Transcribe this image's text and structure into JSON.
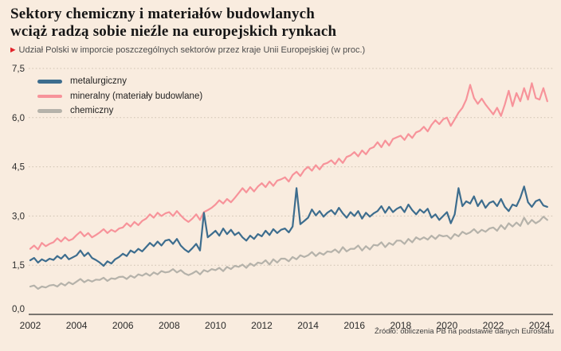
{
  "page": {
    "background_color": "#f9ecdf",
    "accent_red": "#e2232a"
  },
  "header": {
    "title_line1": "Sektory chemiczny i materiałów budowlanych",
    "title_line2": "wciąż radzą sobie nieźle na europejskich rynkach",
    "subtitle_marker": "▶",
    "subtitle": "Udział Polski w imporcie poszczególnych sektorów przez kraje Unii Europejskiej (w proc.)"
  },
  "footer": {
    "source": "Źródło: obliczenia PB na podstawie danych Eurostatu"
  },
  "chart_data": {
    "type": "line",
    "title": "Sektory chemiczny i materiałów budowlanych wciąż radzą sobie nieźle na europejskich rynkach",
    "subtitle": "Udział Polski w imporcie poszczególnych sektorów przez kraje Unii Europejskiej (w proc.)",
    "grid": "horizontal-dotted",
    "legend_position": "top-left-inside",
    "xlim": [
      2002,
      2024.6
    ],
    "ylim": [
      0,
      7.5
    ],
    "x_start": 2002.0,
    "x_step_years": 0.1666667,
    "x_tick_labels": [
      "2002",
      "2004",
      "2006",
      "2008",
      "2010",
      "2012",
      "2014",
      "2016",
      "2018",
      "2020",
      "2022",
      "2024"
    ],
    "y_ticks": [
      0,
      1.5,
      3.0,
      4.5,
      6.0,
      7.5
    ],
    "y_tick_labels": [
      "0,0",
      "1,5",
      "3,0",
      "4,5",
      "6,0",
      "7,5"
    ],
    "series": [
      {
        "name": "metalurgiczny",
        "color": "#3d6d8e",
        "values": [
          1.65,
          1.72,
          1.58,
          1.68,
          1.62,
          1.7,
          1.66,
          1.78,
          1.7,
          1.82,
          1.68,
          1.74,
          1.8,
          1.95,
          1.78,
          1.88,
          1.72,
          1.66,
          1.58,
          1.48,
          1.62,
          1.55,
          1.68,
          1.75,
          1.85,
          1.78,
          1.95,
          1.88,
          2.0,
          1.92,
          2.05,
          2.18,
          2.08,
          2.22,
          2.1,
          2.25,
          2.28,
          2.15,
          2.3,
          2.1,
          1.98,
          1.9,
          2.02,
          2.15,
          1.95,
          3.1,
          2.35,
          2.45,
          2.55,
          2.4,
          2.62,
          2.45,
          2.58,
          2.42,
          2.5,
          2.35,
          2.25,
          2.4,
          2.3,
          2.45,
          2.38,
          2.55,
          2.42,
          2.6,
          2.48,
          2.58,
          2.62,
          2.5,
          2.68,
          3.85,
          2.75,
          2.85,
          2.95,
          3.2,
          3.02,
          3.15,
          2.98,
          3.1,
          3.18,
          3.05,
          3.25,
          3.08,
          2.95,
          3.12,
          3.0,
          3.15,
          2.92,
          3.1,
          2.98,
          3.08,
          3.15,
          3.3,
          3.1,
          3.28,
          3.12,
          3.22,
          3.28,
          3.12,
          3.35,
          3.18,
          3.05,
          3.2,
          3.1,
          3.22,
          2.95,
          3.05,
          2.88,
          3.0,
          3.12,
          2.78,
          3.05,
          3.85,
          3.3,
          3.45,
          3.38,
          3.6,
          3.3,
          3.48,
          3.25,
          3.4,
          3.45,
          3.3,
          3.52,
          3.28,
          3.15,
          3.35,
          3.3,
          3.55,
          3.9,
          3.42,
          3.28,
          3.45,
          3.5,
          3.32,
          3.28
        ]
      },
      {
        "name": "mineralny (materiały budowlane)",
        "color": "#f7939a",
        "values": [
          2.0,
          2.1,
          1.98,
          2.18,
          2.08,
          2.15,
          2.2,
          2.32,
          2.22,
          2.35,
          2.25,
          2.3,
          2.42,
          2.52,
          2.38,
          2.48,
          2.35,
          2.42,
          2.5,
          2.6,
          2.48,
          2.58,
          2.52,
          2.62,
          2.65,
          2.78,
          2.68,
          2.82,
          2.72,
          2.85,
          2.92,
          3.05,
          2.95,
          3.1,
          3.0,
          3.08,
          3.12,
          3.0,
          3.15,
          3.02,
          2.9,
          2.82,
          2.92,
          3.05,
          2.88,
          3.12,
          3.18,
          3.25,
          3.35,
          3.48,
          3.38,
          3.52,
          3.42,
          3.55,
          3.7,
          3.85,
          3.72,
          3.88,
          3.75,
          3.9,
          4.0,
          3.88,
          4.05,
          3.92,
          4.08,
          4.12,
          4.18,
          4.05,
          4.25,
          4.35,
          4.22,
          4.4,
          4.5,
          4.38,
          4.55,
          4.42,
          4.58,
          4.62,
          4.7,
          4.58,
          4.75,
          4.62,
          4.8,
          4.85,
          4.95,
          4.82,
          5.0,
          4.88,
          5.05,
          5.1,
          5.25,
          5.1,
          5.3,
          5.15,
          5.35,
          5.4,
          5.45,
          5.32,
          5.5,
          5.38,
          5.55,
          5.6,
          5.72,
          5.58,
          5.78,
          5.92,
          5.8,
          5.95,
          6.0,
          5.75,
          5.95,
          6.15,
          6.3,
          6.55,
          7.0,
          6.6,
          6.42,
          6.58,
          6.4,
          6.25,
          6.1,
          6.3,
          6.05,
          6.4,
          6.82,
          6.35,
          6.75,
          6.5,
          6.9,
          6.55,
          7.05,
          6.6,
          6.55,
          6.9,
          6.5
        ]
      },
      {
        "name": "chemiczny",
        "color": "#b5b2aa",
        "values": [
          0.85,
          0.88,
          0.78,
          0.85,
          0.82,
          0.88,
          0.9,
          0.85,
          0.95,
          0.88,
          0.98,
          0.92,
          1.0,
          1.08,
          0.98,
          1.05,
          1.0,
          1.06,
          1.05,
          1.12,
          1.02,
          1.1,
          1.08,
          1.14,
          1.15,
          1.08,
          1.18,
          1.12,
          1.22,
          1.18,
          1.25,
          1.18,
          1.28,
          1.22,
          1.32,
          1.28,
          1.3,
          1.38,
          1.28,
          1.35,
          1.25,
          1.2,
          1.25,
          1.32,
          1.22,
          1.35,
          1.3,
          1.38,
          1.35,
          1.42,
          1.32,
          1.45,
          1.38,
          1.48,
          1.45,
          1.52,
          1.42,
          1.55,
          1.48,
          1.58,
          1.55,
          1.65,
          1.52,
          1.68,
          1.58,
          1.7,
          1.7,
          1.62,
          1.75,
          1.68,
          1.8,
          1.75,
          1.8,
          1.9,
          1.78,
          1.88,
          1.82,
          1.92,
          1.9,
          1.98,
          1.88,
          2.05,
          1.92,
          2.0,
          2.0,
          2.1,
          1.95,
          2.08,
          1.98,
          2.12,
          2.1,
          2.2,
          2.05,
          2.18,
          2.12,
          2.25,
          2.25,
          2.15,
          2.3,
          2.2,
          2.35,
          2.28,
          2.35,
          2.28,
          2.4,
          2.3,
          2.42,
          2.38,
          2.4,
          2.3,
          2.45,
          2.38,
          2.52,
          2.45,
          2.5,
          2.6,
          2.48,
          2.58,
          2.52,
          2.62,
          2.65,
          2.55,
          2.72,
          2.6,
          2.78,
          2.68,
          2.8,
          2.7,
          2.95,
          2.75,
          2.88,
          2.78,
          2.85,
          2.98,
          2.88
        ]
      }
    ]
  }
}
